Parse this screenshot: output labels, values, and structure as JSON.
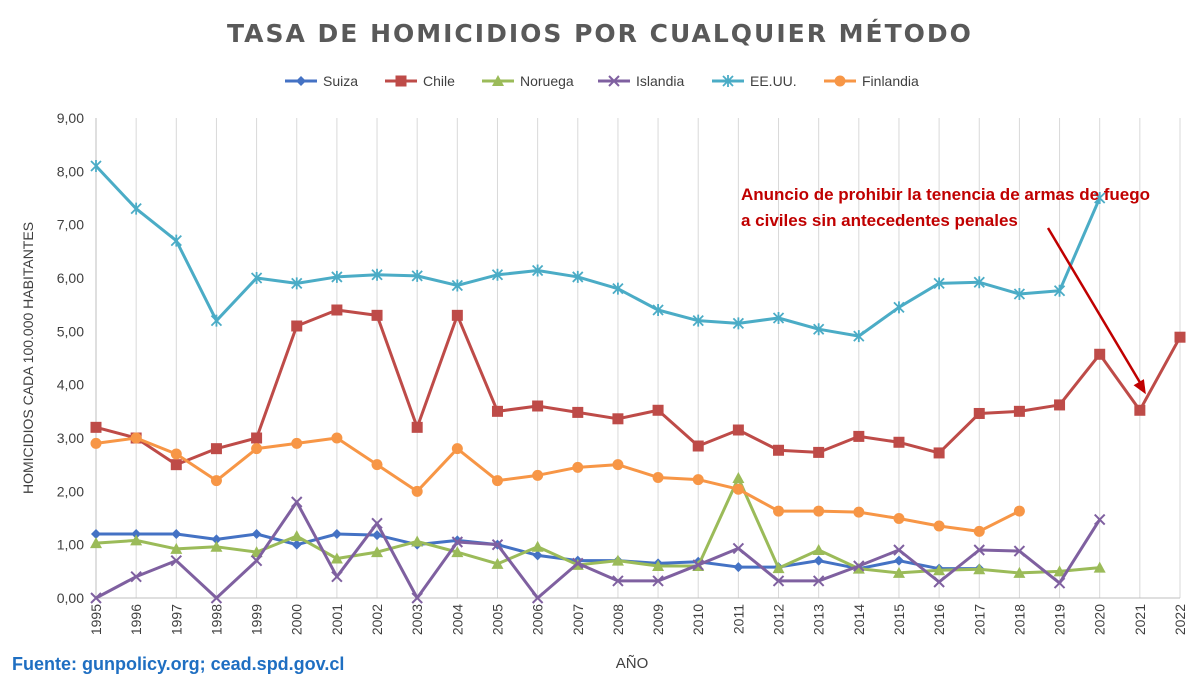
{
  "chart_data": {
    "type": "line",
    "title": "TASA DE HOMICIDIOS POR CUALQUIER MÉTODO",
    "xlabel": "AÑO",
    "ylabel": "HOMICIDIOS CADA 100.000 HABITANTES",
    "ylim": [
      0,
      9
    ],
    "yticks": [
      "0,00",
      "1,00",
      "2,00",
      "3,00",
      "4,00",
      "5,00",
      "6,00",
      "7,00",
      "8,00",
      "9,00"
    ],
    "grid": "vertical",
    "legend": "top",
    "x": [
      "1995",
      "1996",
      "1997",
      "1998",
      "1999",
      "2000",
      "2001",
      "2002",
      "2003",
      "2004",
      "2005",
      "2006",
      "2007",
      "2008",
      "2009",
      "2010",
      "2011",
      "2012",
      "2013",
      "2014",
      "2015",
      "2016",
      "2017",
      "2018",
      "2019",
      "2020",
      "2021",
      "2022"
    ],
    "series": [
      {
        "name": "Suiza",
        "color": "#4472c4",
        "marker": "diamond",
        "values": [
          1.2,
          1.2,
          1.2,
          1.1,
          1.2,
          1.0,
          1.2,
          1.18,
          1.0,
          1.08,
          1.0,
          0.8,
          0.7,
          0.7,
          0.65,
          0.68,
          0.58,
          0.58,
          0.7,
          0.55,
          0.7,
          0.55,
          0.55,
          null,
          null,
          null,
          null,
          null
        ]
      },
      {
        "name": "Chile",
        "color": "#be4b48",
        "marker": "square",
        "values": [
          3.2,
          3.0,
          2.5,
          2.8,
          3.0,
          5.1,
          5.4,
          5.3,
          3.2,
          5.3,
          3.5,
          3.6,
          3.48,
          3.36,
          3.52,
          2.85,
          3.15,
          2.77,
          2.73,
          3.03,
          2.92,
          2.72,
          3.46,
          3.5,
          3.62,
          4.57,
          3.52,
          4.89
        ]
      },
      {
        "name": "Noruega",
        "color": "#9bbb59",
        "marker": "triangle",
        "values": [
          1.03,
          1.08,
          0.92,
          0.96,
          0.86,
          1.16,
          0.74,
          0.86,
          1.06,
          0.86,
          0.64,
          0.96,
          0.62,
          0.7,
          0.6,
          0.6,
          2.25,
          0.56,
          0.9,
          0.55,
          0.47,
          0.52,
          0.54,
          0.47,
          0.5,
          0.57,
          null,
          null
        ]
      },
      {
        "name": "Islandia",
        "color": "#7f60a0",
        "marker": "x",
        "values": [
          0.0,
          0.4,
          0.7,
          0.0,
          0.7,
          1.8,
          0.4,
          1.4,
          0.0,
          1.05,
          1.0,
          0.0,
          0.65,
          0.32,
          0.32,
          0.62,
          0.93,
          0.32,
          0.32,
          0.6,
          0.9,
          0.3,
          0.9,
          0.88,
          0.28,
          1.47,
          null,
          null
        ]
      },
      {
        "name": "EE.UU.",
        "color": "#4bacc6",
        "marker": "star",
        "values": [
          8.1,
          7.3,
          6.7,
          5.2,
          6.0,
          5.9,
          6.02,
          6.06,
          6.04,
          5.86,
          6.06,
          6.14,
          6.02,
          5.8,
          5.4,
          5.2,
          5.15,
          5.25,
          5.04,
          4.91,
          5.45,
          5.9,
          5.92,
          5.7,
          5.76,
          7.5,
          null,
          null
        ]
      },
      {
        "name": "Finlandia",
        "color": "#f79646",
        "marker": "circle",
        "values": [
          2.9,
          3.0,
          2.7,
          2.2,
          2.8,
          2.9,
          3.0,
          2.5,
          2.0,
          2.8,
          2.2,
          2.3,
          2.45,
          2.5,
          2.26,
          2.22,
          2.04,
          1.63,
          1.63,
          1.61,
          1.49,
          1.35,
          1.25,
          1.63,
          null,
          null,
          null,
          null
        ]
      }
    ],
    "annotation": {
      "lines": [
        "Anuncio de prohibir la tenencia de armas de fuego",
        "a civiles sin antecedentes penales"
      ],
      "color": "#c00000",
      "arrow_target": {
        "x": "2021",
        "y": 3.52
      }
    }
  },
  "source_text": "Fuente: gunpolicy.org; cead.spd.gov.cl"
}
